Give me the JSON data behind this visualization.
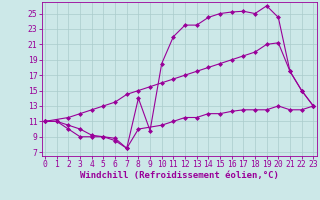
{
  "line1_x": [
    0,
    1,
    2,
    3,
    4,
    5,
    6,
    7,
    8,
    9,
    10,
    11,
    12,
    13,
    14,
    15,
    16,
    17,
    18,
    19,
    20,
    21,
    22,
    23
  ],
  "line1_y": [
    11,
    11,
    10.5,
    10,
    9.2,
    9,
    8.8,
    7.5,
    14,
    9.8,
    18.5,
    22,
    23.5,
    23.5,
    24.5,
    25,
    25.2,
    25.3,
    25,
    26,
    24.5,
    17.5,
    15,
    13
  ],
  "line2_x": [
    0,
    2,
    3,
    4,
    5,
    6,
    7,
    8,
    9,
    10,
    11,
    12,
    13,
    14,
    15,
    16,
    17,
    18,
    19,
    20,
    21,
    22,
    23
  ],
  "line2_y": [
    11,
    11.5,
    12,
    12.5,
    13,
    13.5,
    14.5,
    15,
    15.5,
    16,
    16.5,
    17,
    17.5,
    18,
    18.5,
    19,
    19.5,
    20,
    21,
    21.2,
    17.5,
    15,
    13
  ],
  "line3_x": [
    0,
    1,
    2,
    3,
    4,
    5,
    6,
    7,
    8,
    10,
    11,
    12,
    13,
    14,
    15,
    16,
    17,
    18,
    19,
    20,
    21,
    22,
    23
  ],
  "line3_y": [
    11,
    11,
    10,
    9,
    9,
    9,
    8.5,
    7.5,
    10,
    10.5,
    11,
    11.5,
    11.5,
    12,
    12,
    12.3,
    12.5,
    12.5,
    12.5,
    13,
    12.5,
    12.5,
    13
  ],
  "line_color": "#990099",
  "bg_color": "#cce8e8",
  "grid_color": "#aacccc",
  "xlabel": "Windchill (Refroidissement éolien,°C)",
  "xlabel_fontsize": 6.5,
  "xticks": [
    0,
    1,
    2,
    3,
    4,
    5,
    6,
    7,
    8,
    9,
    10,
    11,
    12,
    13,
    14,
    15,
    16,
    17,
    18,
    19,
    20,
    21,
    22,
    23
  ],
  "yticks": [
    7,
    9,
    11,
    13,
    15,
    17,
    19,
    21,
    23,
    25
  ],
  "xlim": [
    -0.3,
    23.3
  ],
  "ylim": [
    6.5,
    26.5
  ],
  "tick_fontsize": 5.8
}
